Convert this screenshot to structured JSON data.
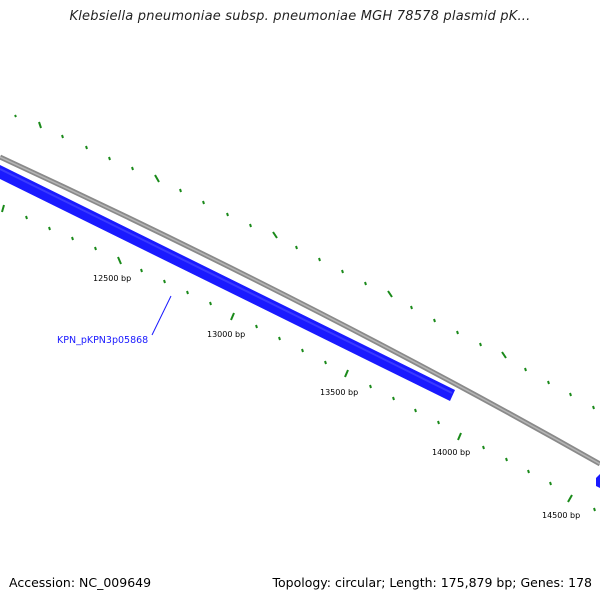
{
  "title": "Klebsiella pneumoniae subsp. pneumoniae MGH 78578 plasmid pK...",
  "footer": {
    "accession": "Accession: NC_009649",
    "summary": "Topology: circular; Length: 175,879 bp; Genes: 178"
  },
  "colors": {
    "backbone": "#8a8a8a",
    "gene": "#1a1aff",
    "tick": "#1a8a1a",
    "label": "#1a1aff"
  },
  "gene_label": "KPN_pKPN3p05868",
  "scale": {
    "unit": "bp",
    "labels": [
      "12500 bp",
      "13000 bp",
      "13500 bp",
      "14000 bp",
      "14500 bp"
    ]
  }
}
